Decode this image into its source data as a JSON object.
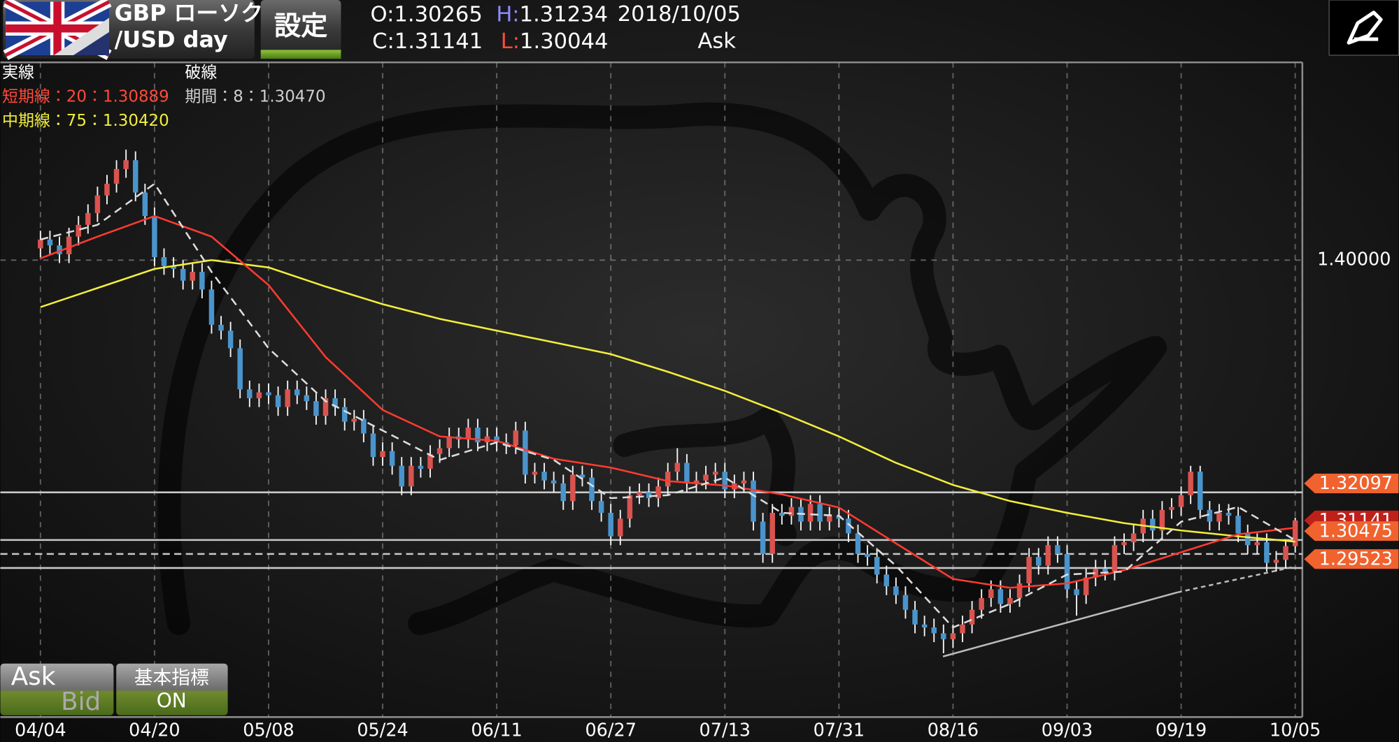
{
  "header": {
    "pair_top": "GBP ローソク",
    "pair_bottom": "/USD day",
    "settings": "設定",
    "ohlc": [
      {
        "label": "O:",
        "value": "1.30265",
        "color": "#ffffff"
      },
      {
        "label": "H:",
        "value": "1.31234",
        "color": "#8a8cff"
      },
      {
        "label": "C:",
        "value": "1.31141",
        "color": "#ffffff"
      },
      {
        "label": "L:",
        "value": "1.30044",
        "color": "#ff4a3a"
      }
    ],
    "date": "2018/10/05",
    "side": "Ask"
  },
  "legend": {
    "solid": "実線",
    "dashed": "破線",
    "items": [
      {
        "text": "短期線：20：1.30889",
        "color": "#ff4a3a"
      },
      {
        "text": "期間：8：1.30470",
        "color": "#cfcfcf"
      },
      {
        "text": "中期線：75：1.30420",
        "color": "#f2ee3c"
      }
    ]
  },
  "buttons": {
    "ask": "Ask",
    "bid": "Bid",
    "indicator": "基本指標",
    "indicator_state": "ON"
  },
  "chart_data": {
    "type": "candlestick",
    "up_color": "#d9534f",
    "down_color": "#4a94cc",
    "categories": [
      "04/04",
      null,
      null,
      null,
      null,
      null,
      null,
      null,
      null,
      null,
      null,
      null,
      "04/20",
      null,
      null,
      null,
      null,
      null,
      null,
      null,
      null,
      null,
      null,
      null,
      "05/08",
      null,
      null,
      null,
      null,
      null,
      null,
      null,
      null,
      null,
      null,
      null,
      "05/24",
      null,
      null,
      null,
      null,
      null,
      null,
      null,
      null,
      null,
      null,
      null,
      "06/11",
      null,
      null,
      null,
      null,
      null,
      null,
      null,
      null,
      null,
      null,
      null,
      "06/27",
      null,
      null,
      null,
      null,
      null,
      null,
      null,
      null,
      null,
      null,
      null,
      "07/13",
      null,
      null,
      null,
      null,
      null,
      null,
      null,
      null,
      null,
      null,
      null,
      "07/31",
      null,
      null,
      null,
      null,
      null,
      null,
      null,
      null,
      null,
      null,
      null,
      "08/16",
      null,
      null,
      null,
      null,
      null,
      null,
      null,
      null,
      null,
      null,
      null,
      "09/03",
      null,
      null,
      null,
      null,
      null,
      null,
      null,
      null,
      null,
      null,
      null,
      "09/19",
      null,
      null,
      null,
      null,
      null,
      null,
      null,
      null,
      null,
      null,
      null,
      "10/05"
    ],
    "candles": [
      [
        1.404,
        1.41,
        1.401,
        1.407
      ],
      [
        1.407,
        1.41,
        1.402,
        1.405
      ],
      [
        1.405,
        1.408,
        1.399,
        1.402
      ],
      [
        1.402,
        1.411,
        1.399,
        1.408
      ],
      [
        1.408,
        1.415,
        1.405,
        1.412
      ],
      [
        1.412,
        1.419,
        1.409,
        1.416
      ],
      [
        1.416,
        1.425,
        1.413,
        1.422
      ],
      [
        1.422,
        1.429,
        1.419,
        1.426
      ],
      [
        1.426,
        1.434,
        1.423,
        1.431
      ],
      [
        1.431,
        1.4376,
        1.428,
        1.434
      ],
      [
        1.434,
        1.437,
        1.42,
        1.423
      ],
      [
        1.423,
        1.426,
        1.412,
        1.415
      ],
      [
        1.415,
        1.418,
        1.398,
        1.401
      ],
      [
        1.401,
        1.404,
        1.395,
        1.398
      ],
      [
        1.398,
        1.401,
        1.394,
        1.397
      ],
      [
        1.397,
        1.4,
        1.39,
        1.393
      ],
      [
        1.393,
        1.399,
        1.39,
        1.396
      ],
      [
        1.396,
        1.399,
        1.387,
        1.39
      ],
      [
        1.39,
        1.393,
        1.375,
        1.378
      ],
      [
        1.378,
        1.381,
        1.373,
        1.376
      ],
      [
        1.376,
        1.379,
        1.367,
        1.37
      ],
      [
        1.37,
        1.373,
        1.353,
        1.356
      ],
      [
        1.356,
        1.359,
        1.35,
        1.353
      ],
      [
        1.353,
        1.358,
        1.35,
        1.355
      ],
      [
        1.355,
        1.358,
        1.351,
        1.354
      ],
      [
        1.354,
        1.357,
        1.347,
        1.35
      ],
      [
        1.35,
        1.359,
        1.347,
        1.356
      ],
      [
        1.356,
        1.359,
        1.351,
        1.354
      ],
      [
        1.354,
        1.357,
        1.349,
        1.352
      ],
      [
        1.352,
        1.355,
        1.344,
        1.347
      ],
      [
        1.347,
        1.356,
        1.344,
        1.353
      ],
      [
        1.353,
        1.356,
        1.347,
        1.35
      ],
      [
        1.35,
        1.353,
        1.342,
        1.345
      ],
      [
        1.345,
        1.349,
        1.342,
        1.346
      ],
      [
        1.346,
        1.349,
        1.338,
        1.341
      ],
      [
        1.341,
        1.344,
        1.33,
        1.333
      ],
      [
        1.333,
        1.338,
        1.33,
        1.335
      ],
      [
        1.335,
        1.338,
        1.327,
        1.33
      ],
      [
        1.33,
        1.333,
        1.32,
        1.323
      ],
      [
        1.323,
        1.333,
        1.32,
        1.33
      ],
      [
        1.33,
        1.333,
        1.326,
        1.329
      ],
      [
        1.329,
        1.337,
        1.326,
        1.334
      ],
      [
        1.334,
        1.339,
        1.331,
        1.336
      ],
      [
        1.336,
        1.343,
        1.333,
        1.34
      ],
      [
        1.34,
        1.343,
        1.336,
        1.339
      ],
      [
        1.339,
        1.346,
        1.336,
        1.343
      ],
      [
        1.343,
        1.346,
        1.335,
        1.338
      ],
      [
        1.338,
        1.343,
        1.335,
        1.34
      ],
      [
        1.34,
        1.343,
        1.335,
        1.338
      ],
      [
        1.338,
        1.341,
        1.334,
        1.337
      ],
      [
        1.337,
        1.345,
        1.334,
        1.342
      ],
      [
        1.342,
        1.345,
        1.324,
        1.327
      ],
      [
        1.327,
        1.331,
        1.324,
        1.328
      ],
      [
        1.328,
        1.331,
        1.322,
        1.325
      ],
      [
        1.325,
        1.328,
        1.321,
        1.324
      ],
      [
        1.324,
        1.327,
        1.315,
        1.318
      ],
      [
        1.318,
        1.33,
        1.315,
        1.327
      ],
      [
        1.327,
        1.33,
        1.323,
        1.326
      ],
      [
        1.326,
        1.329,
        1.315,
        1.318
      ],
      [
        1.318,
        1.321,
        1.311,
        1.314
      ],
      [
        1.314,
        1.317,
        1.303,
        1.306
      ],
      [
        1.306,
        1.315,
        1.303,
        1.312
      ],
      [
        1.312,
        1.323,
        1.309,
        1.32
      ],
      [
        1.32,
        1.324,
        1.317,
        1.321
      ],
      [
        1.321,
        1.324,
        1.316,
        1.319
      ],
      [
        1.319,
        1.326,
        1.316,
        1.323
      ],
      [
        1.323,
        1.331,
        1.32,
        1.328
      ],
      [
        1.328,
        1.336,
        1.325,
        1.331
      ],
      [
        1.331,
        1.334,
        1.321,
        1.324
      ],
      [
        1.324,
        1.328,
        1.321,
        1.325
      ],
      [
        1.325,
        1.33,
        1.322,
        1.327
      ],
      [
        1.327,
        1.331,
        1.324,
        1.328
      ],
      [
        1.328,
        1.331,
        1.319,
        1.322
      ],
      [
        1.322,
        1.327,
        1.319,
        1.324
      ],
      [
        1.324,
        1.328,
        1.321,
        1.325
      ],
      [
        1.325,
        1.328,
        1.308,
        1.311
      ],
      [
        1.311,
        1.314,
        1.297,
        1.3
      ],
      [
        1.3,
        1.317,
        1.297,
        1.314
      ],
      [
        1.314,
        1.317,
        1.31,
        1.313
      ],
      [
        1.313,
        1.319,
        1.31,
        1.316
      ],
      [
        1.316,
        1.319,
        1.308,
        1.311
      ],
      [
        1.311,
        1.32,
        1.308,
        1.317
      ],
      [
        1.317,
        1.32,
        1.308,
        1.311
      ],
      [
        1.311,
        1.316,
        1.308,
        1.313
      ],
      [
        1.313,
        1.316,
        1.309,
        1.312
      ],
      [
        1.312,
        1.315,
        1.304,
        1.307
      ],
      [
        1.307,
        1.31,
        1.297,
        1.3
      ],
      [
        1.3,
        1.303,
        1.296,
        1.299
      ],
      [
        1.299,
        1.302,
        1.29,
        1.293
      ],
      [
        1.293,
        1.296,
        1.286,
        1.289
      ],
      [
        1.289,
        1.292,
        1.283,
        1.286
      ],
      [
        1.286,
        1.289,
        1.278,
        1.281
      ],
      [
        1.281,
        1.284,
        1.273,
        1.276
      ],
      [
        1.276,
        1.279,
        1.272,
        1.275
      ],
      [
        1.275,
        1.278,
        1.27,
        1.273
      ],
      [
        1.273,
        1.276,
        1.2662,
        1.271
      ],
      [
        1.271,
        1.276,
        1.268,
        1.273
      ],
      [
        1.273,
        1.279,
        1.27,
        1.276
      ],
      [
        1.276,
        1.284,
        1.273,
        1.281
      ],
      [
        1.281,
        1.288,
        1.278,
        1.285
      ],
      [
        1.285,
        1.291,
        1.282,
        1.288
      ],
      [
        1.288,
        1.291,
        1.28,
        1.283
      ],
      [
        1.283,
        1.288,
        1.28,
        1.285
      ],
      [
        1.285,
        1.293,
        1.282,
        1.29
      ],
      [
        1.29,
        1.302,
        1.287,
        1.299
      ],
      [
        1.299,
        1.302,
        1.293,
        1.296
      ],
      [
        1.296,
        1.306,
        1.293,
        1.303
      ],
      [
        1.303,
        1.306,
        1.297,
        1.3
      ],
      [
        1.3,
        1.303,
        1.285,
        1.288
      ],
      [
        1.288,
        1.291,
        1.279,
        1.286
      ],
      [
        1.286,
        1.295,
        1.283,
        1.292
      ],
      [
        1.292,
        1.298,
        1.289,
        1.295
      ],
      [
        1.295,
        1.298,
        1.291,
        1.294
      ],
      [
        1.294,
        1.306,
        1.291,
        1.303
      ],
      [
        1.303,
        1.307,
        1.3,
        1.304
      ],
      [
        1.304,
        1.31,
        1.301,
        1.307
      ],
      [
        1.307,
        1.315,
        1.304,
        1.312
      ],
      [
        1.312,
        1.315,
        1.305,
        1.308
      ],
      [
        1.308,
        1.318,
        1.305,
        1.315
      ],
      [
        1.315,
        1.319,
        1.312,
        1.316
      ],
      [
        1.316,
        1.323,
        1.313,
        1.32
      ],
      [
        1.32,
        1.33,
        1.317,
        1.328
      ],
      [
        1.328,
        1.33,
        1.312,
        1.315
      ],
      [
        1.315,
        1.318,
        1.308,
        1.311
      ],
      [
        1.311,
        1.317,
        1.308,
        1.314
      ],
      [
        1.314,
        1.317,
        1.31,
        1.313
      ],
      [
        1.313,
        1.316,
        1.304,
        1.307
      ],
      [
        1.307,
        1.31,
        1.3,
        1.303
      ],
      [
        1.303,
        1.307,
        1.3,
        1.304
      ],
      [
        1.304,
        1.307,
        1.294,
        1.297
      ],
      [
        1.297,
        1.301,
        1.294,
        1.298
      ],
      [
        1.298,
        1.305,
        1.295,
        1.3027
      ],
      [
        1.30265,
        1.31234,
        1.30044,
        1.31141
      ]
    ],
    "moving_averages": [
      {
        "color": "#f2ee3c",
        "dashed": false,
        "x": [
          0,
          6,
          12,
          18,
          24,
          30,
          36,
          42,
          48,
          54,
          60,
          66,
          72,
          78,
          84,
          90,
          96,
          102,
          108,
          114,
          120,
          126,
          132
        ],
        "values": [
          1.384,
          1.3905,
          1.397,
          1.4,
          1.3975,
          1.391,
          1.385,
          1.38,
          1.376,
          1.372,
          1.368,
          1.362,
          1.3555,
          1.348,
          1.34,
          1.331,
          1.3235,
          1.318,
          1.314,
          1.3105,
          1.308,
          1.306,
          1.3042
        ]
      },
      {
        "color": "#ff3b30",
        "dashed": false,
        "x": [
          0,
          6,
          12,
          18,
          24,
          30,
          36,
          42,
          48,
          54,
          60,
          66,
          72,
          78,
          84,
          90,
          96,
          102,
          108,
          114,
          120,
          126,
          132
        ],
        "values": [
          1.4006,
          1.408,
          1.415,
          1.408,
          1.3915,
          1.367,
          1.349,
          1.34,
          1.3385,
          1.3324,
          1.3294,
          1.3248,
          1.3233,
          1.3203,
          1.3158,
          1.3036,
          1.2915,
          1.2885,
          1.29,
          1.2945,
          1.3006,
          1.3067,
          1.3089
        ]
      },
      {
        "color": "#dddddd",
        "dashed": true,
        "x": [
          0,
          6,
          12,
          18,
          24,
          30,
          36,
          42,
          48,
          54,
          60,
          66,
          72,
          78,
          84,
          90,
          96,
          102,
          108,
          114,
          120,
          126,
          132
        ],
        "values": [
          1.407,
          1.412,
          1.426,
          1.396,
          1.37,
          1.352,
          1.342,
          1.332,
          1.338,
          1.332,
          1.319,
          1.32,
          1.326,
          1.314,
          1.313,
          1.296,
          1.275,
          1.283,
          1.293,
          1.294,
          1.311,
          1.316,
          1.3047
        ]
      }
    ],
    "price_lines": [
      {
        "value": 1.32097,
        "color": "#f0622e",
        "line": true,
        "labeled": true
      },
      {
        "value": 1.31141,
        "color": "#c0201a",
        "line": false,
        "labeled": true
      },
      {
        "value": 1.30475,
        "color": "#f0622e",
        "line": true,
        "labeled": true
      },
      {
        "value": 1.29523,
        "color": "#f0622e",
        "line": true,
        "labeled": true
      },
      {
        "value": 1.3,
        "color": "#f0622e",
        "line": true,
        "labeled": false,
        "dashed": true
      }
    ],
    "xlim": [
      0,
      132
    ],
    "ylim": [
      1.2445,
      1.4673
    ],
    "yticks": [
      {
        "value": 1.4,
        "label": "1.40000"
      }
    ],
    "grid": true
  }
}
